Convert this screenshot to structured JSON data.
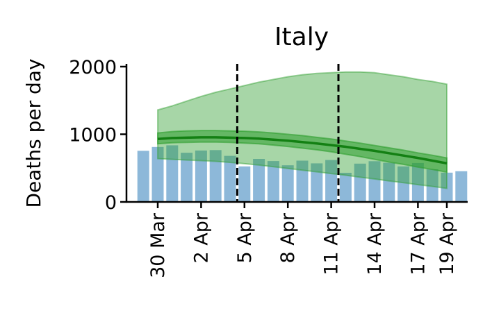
{
  "chart_data": {
    "type": "bar",
    "title": "Italy",
    "ylabel": "Deaths per day",
    "xlabel": "",
    "ylim": [
      0,
      2000
    ],
    "yticks": [
      0,
      1000,
      2000
    ],
    "xtick_labels": [
      "30 Mar",
      "2 Apr",
      "5 Apr",
      "8 Apr",
      "11 Apr",
      "14 Apr",
      "17 Apr",
      "19 Apr"
    ],
    "xtick_days": [
      0,
      3,
      6,
      9,
      12,
      15,
      18,
      20
    ],
    "categories": [
      "29 Mar",
      "30 Mar",
      "31 Mar",
      "1 Apr",
      "2 Apr",
      "3 Apr",
      "4 Apr",
      "5 Apr",
      "6 Apr",
      "7 Apr",
      "8 Apr",
      "9 Apr",
      "10 Apr",
      "11 Apr",
      "12 Apr",
      "13 Apr",
      "14 Apr",
      "15 Apr",
      "16 Apr",
      "17 Apr",
      "18 Apr",
      "19 Apr",
      "20 Apr"
    ],
    "observed_deaths": [
      756,
      812,
      837,
      727,
      760,
      766,
      681,
      525,
      636,
      604,
      542,
      610,
      570,
      619,
      431,
      566,
      602,
      578,
      525,
      575,
      482,
      433,
      454
    ],
    "model": {
      "days": [
        "30 Mar",
        "31 Mar",
        "1 Apr",
        "2 Apr",
        "3 Apr",
        "4 Apr",
        "5 Apr",
        "6 Apr",
        "7 Apr",
        "8 Apr",
        "9 Apr",
        "10 Apr",
        "11 Apr",
        "12 Apr",
        "13 Apr",
        "14 Apr",
        "15 Apr",
        "16 Apr",
        "17 Apr",
        "18 Apr",
        "19 Apr"
      ],
      "mean": [
        930,
        945,
        950,
        955,
        955,
        950,
        945,
        935,
        920,
        905,
        885,
        865,
        840,
        815,
        785,
        755,
        720,
        685,
        650,
        610,
        570
      ],
      "inner_lower": [
        860,
        875,
        880,
        885,
        885,
        880,
        870,
        860,
        840,
        820,
        795,
        770,
        740,
        705,
        670,
        630,
        590,
        555,
        515,
        480,
        440
      ],
      "inner_upper": [
        1020,
        1040,
        1050,
        1055,
        1055,
        1050,
        1045,
        1035,
        1020,
        1000,
        980,
        955,
        930,
        900,
        870,
        835,
        800,
        765,
        725,
        690,
        650
      ],
      "outer_lower": [
        640,
        630,
        620,
        610,
        600,
        585,
        565,
        545,
        520,
        495,
        470,
        445,
        420,
        395,
        365,
        340,
        310,
        285,
        255,
        230,
        200
      ],
      "outer_upper": [
        1360,
        1420,
        1490,
        1560,
        1620,
        1670,
        1720,
        1770,
        1810,
        1850,
        1880,
        1900,
        1910,
        1920,
        1920,
        1910,
        1880,
        1850,
        1810,
        1780,
        1740
      ]
    },
    "vlines_days": [
      5.5,
      12.5
    ],
    "colors": {
      "bars": "#8db8d9",
      "band": "#2e9e2e",
      "line": "#138013",
      "vline": "#000000"
    },
    "legend": "none",
    "grid": false
  }
}
